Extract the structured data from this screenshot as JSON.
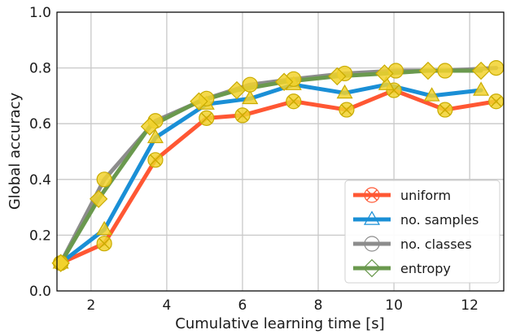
{
  "chart_data": {
    "type": "line",
    "title": "",
    "xlabel": "Cumulative learning time [s]",
    "ylabel": "Global accuracy",
    "xlim": [
      1.1,
      12.9
    ],
    "ylim": [
      0.0,
      1.0
    ],
    "xticks": [
      2,
      4,
      6,
      8,
      10,
      12
    ],
    "yticks": [
      0.0,
      0.2,
      0.4,
      0.6,
      0.8,
      1.0
    ],
    "xtick_labels": [
      "2",
      "4",
      "6",
      "8",
      "10",
      "12"
    ],
    "ytick_labels": [
      "0.0",
      "0.2",
      "0.4",
      "0.6",
      "0.8",
      "1.0"
    ],
    "grid": true,
    "legend_position": "bottom-right",
    "marker_face_color": "#f2d22e",
    "series": [
      {
        "name": "uniform",
        "color": "#ff5733",
        "marker": "x-circle",
        "x": [
          1.2,
          2.35,
          3.7,
          5.05,
          6.0,
          7.35,
          8.75,
          10.0,
          11.35,
          12.7
        ],
        "y": [
          0.1,
          0.17,
          0.47,
          0.62,
          0.63,
          0.68,
          0.65,
          0.72,
          0.65,
          0.68
        ]
      },
      {
        "name": "no. samples",
        "color": "#1a8fd6",
        "marker": "triangle",
        "x": [
          1.2,
          2.35,
          3.7,
          5.05,
          6.2,
          7.35,
          8.7,
          9.8,
          11.0,
          12.3
        ],
        "y": [
          0.1,
          0.22,
          0.55,
          0.67,
          0.69,
          0.74,
          0.71,
          0.74,
          0.7,
          0.72
        ]
      },
      {
        "name": "no. classes",
        "color": "#8c8c8c",
        "marker": "circle",
        "x": [
          1.2,
          2.35,
          3.7,
          5.05,
          6.2,
          7.35,
          8.7,
          10.05,
          11.35,
          12.7
        ],
        "y": [
          0.1,
          0.4,
          0.61,
          0.69,
          0.74,
          0.76,
          0.78,
          0.79,
          0.79,
          0.8
        ]
      },
      {
        "name": "entropy",
        "color": "#6a994e",
        "marker": "diamond",
        "x": [
          1.2,
          2.2,
          3.55,
          4.85,
          5.85,
          7.1,
          8.5,
          9.75,
          10.9,
          12.3
        ],
        "y": [
          0.1,
          0.33,
          0.59,
          0.68,
          0.72,
          0.75,
          0.77,
          0.78,
          0.79,
          0.79
        ]
      }
    ]
  }
}
